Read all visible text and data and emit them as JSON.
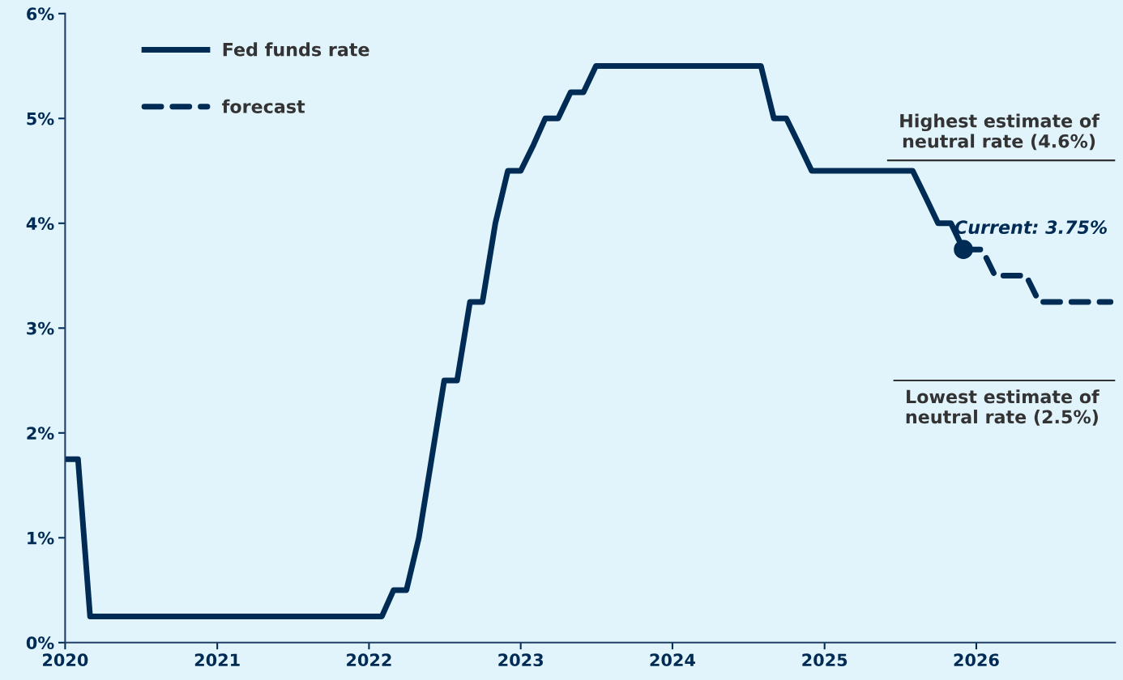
{
  "chart_data": {
    "type": "line",
    "series": [
      {
        "name": "Fed funds rate",
        "color": "#002b55",
        "line_style": "solid",
        "x": [
          "2020-01-01",
          "2020-02-01",
          "2020-03-01",
          "2022-02-01",
          "2022-03-01",
          "2022-04-01",
          "2022-05-01",
          "2022-07-01",
          "2022-08-01",
          "2022-09-01",
          "2022-10-01",
          "2022-11-01",
          "2022-12-01",
          "2023-01-01",
          "2023-02-01",
          "2023-03-01",
          "2023-04-01",
          "2023-05-01",
          "2023-06-01",
          "2023-07-01",
          "2024-08-01",
          "2024-09-01",
          "2024-10-01",
          "2024-11-01",
          "2024-12-01",
          "2025-08-01",
          "2025-09-01",
          "2025-10-01",
          "2025-11-01",
          "2025-12-01"
        ],
        "values": [
          1.75,
          1.75,
          0.25,
          0.25,
          0.5,
          0.5,
          1.0,
          2.5,
          2.5,
          3.25,
          3.25,
          4.0,
          4.5,
          4.5,
          4.75,
          5.0,
          5.0,
          5.25,
          5.25,
          5.5,
          5.5,
          5.0,
          5.0,
          4.75,
          4.5,
          4.5,
          4.25,
          4.0,
          4.0,
          3.75
        ]
      },
      {
        "name": "forecast",
        "color": "#002b55",
        "line_style": "dashed",
        "x": [
          "2025-12-01",
          "2026-01-15",
          "2026-02-15",
          "2026-05-01",
          "2026-06-01",
          "2026-11-20"
        ],
        "values": [
          3.75,
          3.75,
          3.5,
          3.5,
          3.25,
          3.25
        ]
      }
    ],
    "xlim": [
      "2020-01-01",
      "2026-12-01"
    ],
    "xticks": [
      {
        "value": "2020-01-01",
        "label": "2020"
      },
      {
        "value": "2021-01-01",
        "label": "2021"
      },
      {
        "value": "2022-01-01",
        "label": "2022"
      },
      {
        "value": "2023-01-01",
        "label": "2023"
      },
      {
        "value": "2024-01-01",
        "label": "2024"
      },
      {
        "value": "2025-01-01",
        "label": "2025"
      },
      {
        "value": "2026-01-01",
        "label": "2026"
      }
    ],
    "ylim": [
      0,
      6
    ],
    "yticks": [
      {
        "value": 0,
        "label": "0%"
      },
      {
        "value": 1,
        "label": "1%"
      },
      {
        "value": 2,
        "label": "2%"
      },
      {
        "value": 3,
        "label": "3%"
      },
      {
        "value": 4,
        "label": "4%"
      },
      {
        "value": 5,
        "label": "5%"
      },
      {
        "value": 6,
        "label": "6%"
      }
    ],
    "ref_lines": [
      {
        "axis": "y",
        "value": 4.6,
        "label": "Highest estimate of\nneutral rate (4.6%)",
        "color": "#333333"
      },
      {
        "axis": "y",
        "value": 2.5,
        "label": "Lowest estimate of\nneutral rate (2.5%)",
        "color": "#333333"
      }
    ],
    "annotations": [
      {
        "text": "Current: 3.75%",
        "x": "2025-12-01",
        "y": 3.75
      }
    ],
    "grid": false,
    "legend": "top left"
  }
}
